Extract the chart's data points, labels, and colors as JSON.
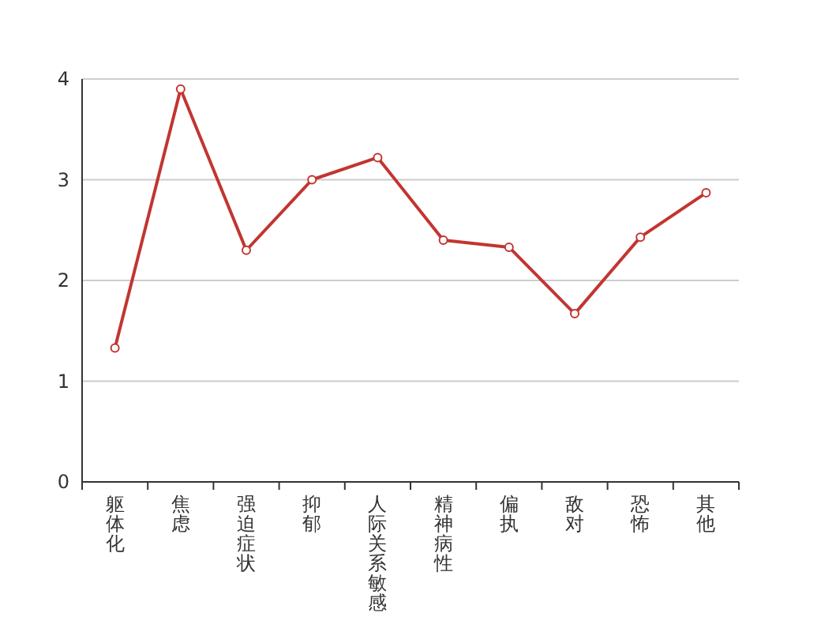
{
  "chart_data": {
    "type": "line",
    "categories": [
      "躯体化",
      "焦虑",
      "强迫症状",
      "抑郁",
      "人际关系敏感",
      "精神病性",
      "偏执",
      "敌对",
      "恐怖",
      "其他"
    ],
    "series": [
      {
        "color": "#c23531",
        "values": [
          1.33,
          3.9,
          2.3,
          3.0,
          3.22,
          2.4,
          2.33,
          1.67,
          2.43,
          2.87
        ]
      }
    ],
    "ylim": [
      0,
      4
    ],
    "yticks": [
      0,
      1,
      2,
      3,
      4
    ],
    "grid": "y",
    "marker": "circle",
    "line_style": "solid"
  }
}
